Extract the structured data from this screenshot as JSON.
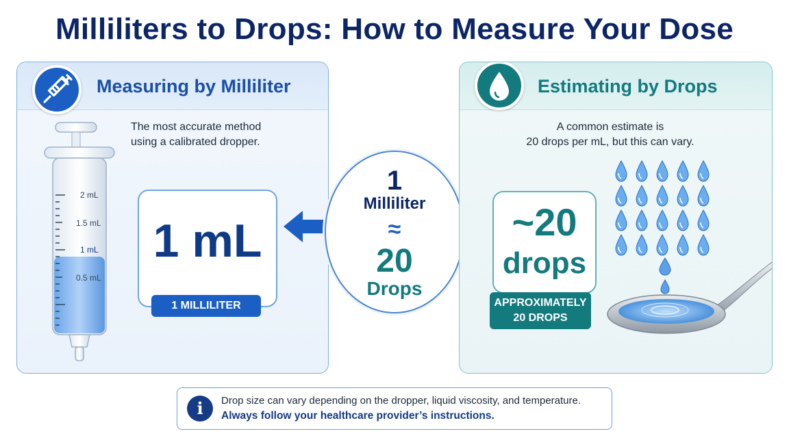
{
  "title": "Milliliters to Drops: How to Measure Your Dose",
  "left_panel": {
    "heading": "Measuring by Milliliter",
    "icon": "syringe-icon",
    "description_line1": "The most accurate method",
    "description_line2": "using a calibrated dropper.",
    "big_value": "1 mL",
    "pill_label": "1 MILLILITER",
    "syringe_marks": [
      "2 mL",
      "1.5 mL",
      "1 mL",
      "0.5 mL"
    ],
    "fill_fraction": 0.5
  },
  "center": {
    "line1": "1",
    "line2": "Milliliter",
    "approx": "≈",
    "line3": "20",
    "line4": "Drops"
  },
  "right_panel": {
    "heading": "Estimating by Drops",
    "icon": "water-drop-icon",
    "description_line1": "A common estimate is",
    "description_line2": "20 drops per mL, but this can vary.",
    "big_value_line1": "~20",
    "big_value_line2": "drops",
    "pill_line1": "APPROXIMATELY",
    "pill_line2": "20 DROPS",
    "drop_count": 20
  },
  "footer": {
    "icon": "info-icon",
    "line1": "Drop size can vary depending on the dropper, liquid viscosity, and temperature.",
    "line2": "Always follow your healthcare provider’s instructions."
  },
  "colors": {
    "navy": "#0b2566",
    "blue": "#1b5fc4",
    "teal": "#137a7e"
  }
}
